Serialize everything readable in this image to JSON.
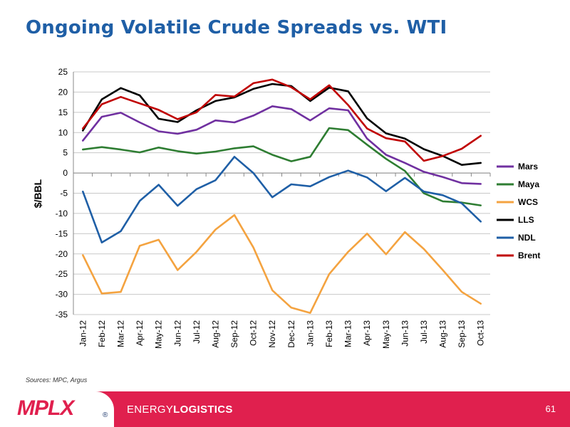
{
  "title": "Ongoing Volatile Crude Spreads vs. WTI",
  "sources": "Sources:  MPC, Argus",
  "footer": {
    "logo": "MPLX",
    "logo_mark": "®",
    "division_light": "ENERGY",
    "division_bold": "LOGISTICS",
    "page_number": "61"
  },
  "colors": {
    "title": "#1f5fa6",
    "footer": "#e0204e"
  },
  "chart_data": {
    "type": "line",
    "ylabel": "$/BBL",
    "xlabel": "",
    "ylim": [
      -35,
      25
    ],
    "yticks": [
      25,
      20,
      15,
      10,
      5,
      0,
      -5,
      -10,
      -15,
      -20,
      -25,
      -30,
      -35
    ],
    "grid": "horizontal",
    "legend": "right",
    "categories": [
      "Jan-12",
      "Feb-12",
      "Mar-12",
      "Apr-12",
      "May-12",
      "Jun-12",
      "Jul-12",
      "Aug-12",
      "Sep-12",
      "Oct-12",
      "Nov-12",
      "Dec-12",
      "Jan-13",
      "Feb-13",
      "Mar-13",
      "Apr-13",
      "May-13",
      "Jun-13",
      "Jul-13",
      "Aug-13",
      "Sep-13",
      "Oct-13"
    ],
    "series": [
      {
        "name": "Mars",
        "color": "#7030a0",
        "values": [
          8.0,
          13.9,
          14.9,
          12.5,
          10.3,
          9.7,
          10.7,
          13.0,
          12.5,
          14.2,
          16.5,
          15.8,
          13.0,
          16.0,
          15.5,
          8.5,
          4.5,
          2.5,
          0.3,
          -1.0,
          -2.5,
          -2.7
        ]
      },
      {
        "name": "Maya",
        "color": "#2e7d32",
        "values": [
          5.8,
          6.4,
          5.8,
          5.1,
          6.3,
          5.4,
          4.8,
          5.3,
          6.1,
          6.6,
          4.5,
          2.9,
          4.0,
          11.1,
          10.6,
          7.0,
          3.5,
          0.5,
          -5.0,
          -7.0,
          -7.3,
          -8.0
        ]
      },
      {
        "name": "WCS",
        "color": "#f4a340",
        "values": [
          -20.3,
          -29.8,
          -29.4,
          -18.0,
          -16.5,
          -24.0,
          -19.5,
          -14.0,
          -10.4,
          -18.4,
          -29.0,
          -33.3,
          -34.6,
          -25.0,
          -19.5,
          -15.0,
          -20.1,
          -14.6,
          -18.8,
          -24.0,
          -29.4,
          -32.3
        ]
      },
      {
        "name": "LLS",
        "color": "#000000",
        "values": [
          10.5,
          18.2,
          21.0,
          19.2,
          13.4,
          12.6,
          15.5,
          17.8,
          18.7,
          20.8,
          22.0,
          21.5,
          17.8,
          21.1,
          20.2,
          13.5,
          9.8,
          8.5,
          5.9,
          4.2,
          2.0,
          2.5
        ]
      },
      {
        "name": "NDL",
        "color": "#1f5fa6",
        "values": [
          -4.6,
          -17.2,
          -14.4,
          -6.9,
          -2.9,
          -8.1,
          -4.0,
          -1.8,
          4.0,
          0.0,
          -6.0,
          -2.8,
          -3.3,
          -1.0,
          0.6,
          -1.1,
          -4.5,
          -1.2,
          -4.6,
          -5.5,
          -7.5,
          -12.0
        ]
      },
      {
        "name": "Brent",
        "color": "#c00000",
        "values": [
          11.0,
          17.0,
          18.8,
          17.2,
          15.6,
          13.3,
          15.0,
          19.3,
          18.9,
          22.2,
          23.1,
          21.2,
          18.2,
          21.7,
          16.8,
          11.0,
          8.6,
          7.8,
          3.0,
          4.2,
          6.0,
          9.2
        ]
      }
    ]
  }
}
